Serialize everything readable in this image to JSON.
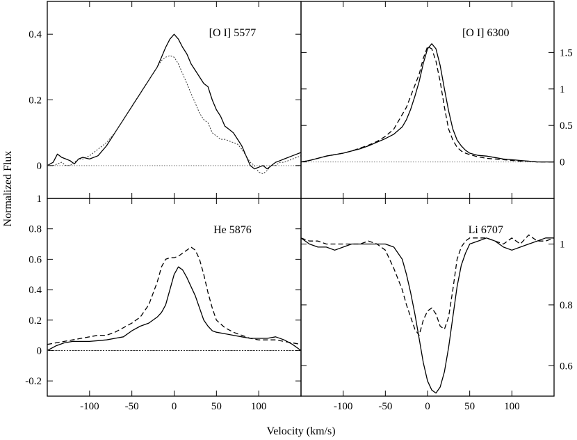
{
  "chart_data": {
    "type": "line",
    "ylabel": "Normalized Flux",
    "xlabel": "Velocity (km/s)",
    "xlim": [
      -150,
      150
    ],
    "xticks": [
      -100,
      -50,
      0,
      50,
      100
    ],
    "panels": [
      {
        "label": "[O I] 5577",
        "position": "top-left",
        "ylim": [
          -0.1,
          0.5
        ],
        "yticks": [
          0,
          0.2,
          0.4
        ],
        "ytick_labels": [
          "0",
          "0.2",
          "0.4"
        ],
        "ytick_side": "left",
        "zero_line": 0,
        "series": [
          {
            "style": "solid",
            "x": [
              -150,
              -143,
              -138,
              -133,
              -128,
              -123,
              -118,
              -113,
              -108,
              -100,
              -90,
              -80,
              -70,
              -60,
              -50,
              -40,
              -30,
              -20,
              -15,
              -10,
              -5,
              0,
              5,
              10,
              15,
              20,
              25,
              30,
              35,
              40,
              45,
              50,
              55,
              60,
              65,
              70,
              75,
              80,
              85,
              90,
              95,
              100,
              105,
              110,
              115,
              120,
              125,
              130,
              140,
              150
            ],
            "y": [
              0.0,
              0.01,
              0.035,
              0.025,
              0.02,
              0.015,
              0.005,
              0.02,
              0.025,
              0.02,
              0.03,
              0.06,
              0.1,
              0.14,
              0.18,
              0.22,
              0.26,
              0.3,
              0.33,
              0.36,
              0.385,
              0.4,
              0.385,
              0.36,
              0.34,
              0.31,
              0.29,
              0.27,
              0.25,
              0.24,
              0.2,
              0.17,
              0.15,
              0.12,
              0.11,
              0.1,
              0.08,
              0.06,
              0.03,
              0.0,
              -0.01,
              -0.005,
              0.0,
              -0.01,
              0.0,
              0.01,
              0.015,
              0.02,
              0.03,
              0.04
            ]
          },
          {
            "style": "dotted",
            "x": [
              -150,
              -143,
              -138,
              -133,
              -128,
              -123,
              -118,
              -113,
              -108,
              -100,
              -90,
              -80,
              -70,
              -60,
              -50,
              -40,
              -30,
              -20,
              -15,
              -10,
              -5,
              0,
              5,
              10,
              15,
              20,
              25,
              30,
              35,
              40,
              45,
              50,
              55,
              60,
              65,
              70,
              75,
              80,
              85,
              90,
              95,
              100,
              105,
              110,
              115,
              120,
              125,
              130,
              140,
              150
            ],
            "y": [
              0.0,
              0.0,
              0.005,
              0.01,
              0.0,
              0.0,
              0.01,
              0.02,
              0.02,
              0.03,
              0.05,
              0.07,
              0.1,
              0.14,
              0.18,
              0.22,
              0.26,
              0.3,
              0.32,
              0.33,
              0.335,
              0.33,
              0.31,
              0.28,
              0.25,
              0.22,
              0.19,
              0.16,
              0.14,
              0.13,
              0.1,
              0.09,
              0.08,
              0.08,
              0.075,
              0.07,
              0.065,
              0.05,
              0.03,
              0.01,
              0.0,
              -0.02,
              -0.025,
              -0.015,
              0.0,
              0.0,
              0.01,
              0.01,
              0.02,
              0.03
            ]
          }
        ]
      },
      {
        "label": "[O I] 6300",
        "position": "top-right",
        "ylim": [
          -0.5,
          2.2
        ],
        "yticks": [
          0,
          0.5,
          1,
          1.5
        ],
        "ytick_labels": [
          "0",
          "0.5",
          "1",
          "1.5"
        ],
        "ytick_side": "right",
        "zero_line": 0,
        "series": [
          {
            "style": "solid",
            "x": [
              -150,
              -140,
              -130,
              -120,
              -110,
              -100,
              -90,
              -80,
              -70,
              -60,
              -50,
              -40,
              -30,
              -25,
              -20,
              -15,
              -10,
              -5,
              0,
              5,
              10,
              15,
              20,
              25,
              30,
              35,
              40,
              45,
              50,
              60,
              70,
              80,
              90,
              100,
              110,
              120,
              130,
              140,
              150
            ],
            "y": [
              0.0,
              0.02,
              0.05,
              0.08,
              0.1,
              0.12,
              0.15,
              0.18,
              0.22,
              0.27,
              0.32,
              0.38,
              0.48,
              0.58,
              0.72,
              0.9,
              1.1,
              1.35,
              1.55,
              1.62,
              1.55,
              1.32,
              1.0,
              0.7,
              0.45,
              0.3,
              0.22,
              0.16,
              0.12,
              0.09,
              0.08,
              0.06,
              0.04,
              0.03,
              0.02,
              0.01,
              0.0,
              0.0,
              0.0
            ]
          },
          {
            "style": "dashed",
            "x": [
              -150,
              -140,
              -130,
              -120,
              -110,
              -100,
              -90,
              -80,
              -70,
              -60,
              -50,
              -40,
              -30,
              -25,
              -20,
              -15,
              -10,
              -5,
              0,
              5,
              10,
              15,
              20,
              25,
              30,
              35,
              40,
              45,
              50,
              60,
              70,
              80,
              90,
              100,
              110,
              120,
              130,
              140,
              150
            ],
            "y": [
              0.0,
              0.02,
              0.05,
              0.08,
              0.1,
              0.12,
              0.15,
              0.19,
              0.23,
              0.28,
              0.35,
              0.45,
              0.65,
              0.75,
              0.9,
              1.05,
              1.2,
              1.42,
              1.58,
              1.55,
              1.38,
              1.1,
              0.75,
              0.45,
              0.3,
              0.2,
              0.15,
              0.12,
              0.1,
              0.07,
              0.05,
              0.04,
              0.03,
              0.02,
              0.01,
              0.01,
              0.0,
              0.0,
              0.0
            ]
          }
        ]
      },
      {
        "label": "He 5876",
        "position": "bottom-left",
        "ylim": [
          -0.3,
          1.0
        ],
        "yticks": [
          -0.2,
          0,
          0.2,
          0.4,
          0.6,
          0.8,
          1
        ],
        "ytick_labels": [
          "-0.2",
          "0",
          "0.2",
          "0.4",
          "0.6",
          "0.8",
          "1"
        ],
        "ytick_side": "left",
        "zero_line": 0,
        "series": [
          {
            "style": "solid",
            "x": [
              -150,
              -140,
              -130,
              -120,
              -110,
              -100,
              -90,
              -80,
              -70,
              -60,
              -50,
              -40,
              -30,
              -20,
              -15,
              -10,
              -5,
              0,
              5,
              10,
              15,
              20,
              25,
              30,
              35,
              40,
              45,
              50,
              60,
              70,
              80,
              90,
              100,
              110,
              120,
              130,
              140,
              150
            ],
            "y": [
              0.0,
              0.03,
              0.05,
              0.06,
              0.06,
              0.06,
              0.065,
              0.07,
              0.08,
              0.09,
              0.13,
              0.16,
              0.18,
              0.22,
              0.25,
              0.3,
              0.4,
              0.5,
              0.55,
              0.53,
              0.48,
              0.42,
              0.36,
              0.28,
              0.2,
              0.16,
              0.13,
              0.12,
              0.11,
              0.1,
              0.09,
              0.08,
              0.08,
              0.08,
              0.09,
              0.07,
              0.04,
              0.0
            ]
          },
          {
            "style": "dashed",
            "x": [
              -150,
              -140,
              -130,
              -120,
              -110,
              -100,
              -90,
              -80,
              -70,
              -60,
              -50,
              -40,
              -30,
              -20,
              -15,
              -10,
              -5,
              0,
              5,
              10,
              15,
              20,
              25,
              30,
              35,
              40,
              45,
              50,
              60,
              70,
              80,
              90,
              100,
              110,
              120,
              130,
              140,
              150
            ],
            "y": [
              0.04,
              0.05,
              0.06,
              0.07,
              0.08,
              0.09,
              0.1,
              0.1,
              0.12,
              0.15,
              0.18,
              0.22,
              0.3,
              0.45,
              0.55,
              0.6,
              0.61,
              0.61,
              0.62,
              0.64,
              0.66,
              0.68,
              0.66,
              0.6,
              0.5,
              0.38,
              0.28,
              0.2,
              0.15,
              0.12,
              0.1,
              0.08,
              0.07,
              0.07,
              0.07,
              0.06,
              0.05,
              0.04
            ]
          },
          {
            "style": "dotted",
            "x": [
              -150,
              150
            ],
            "y": [
              0,
              0
            ]
          }
        ]
      },
      {
        "label": "Li 6707",
        "position": "bottom-right",
        "ylim": [
          0.5,
          1.15
        ],
        "yticks": [
          0.6,
          0.8,
          1
        ],
        "ytick_labels": [
          "0.6",
          "0.8",
          "1"
        ],
        "ytick_side": "right",
        "zero_line": null,
        "series": [
          {
            "style": "solid",
            "x": [
              -150,
              -140,
              -130,
              -120,
              -110,
              -100,
              -90,
              -80,
              -70,
              -60,
              -50,
              -40,
              -30,
              -25,
              -20,
              -15,
              -10,
              -5,
              0,
              5,
              10,
              15,
              20,
              25,
              30,
              35,
              40,
              45,
              50,
              60,
              70,
              80,
              90,
              100,
              110,
              120,
              130,
              140,
              150
            ],
            "y": [
              1.02,
              1.0,
              0.99,
              0.99,
              0.98,
              0.99,
              1.0,
              1.0,
              1.0,
              1.0,
              1.0,
              0.99,
              0.95,
              0.9,
              0.84,
              0.77,
              0.69,
              0.61,
              0.55,
              0.52,
              0.51,
              0.53,
              0.58,
              0.66,
              0.76,
              0.86,
              0.93,
              0.97,
              1.0,
              1.01,
              1.02,
              1.01,
              0.99,
              0.98,
              0.99,
              1.0,
              1.01,
              1.02,
              1.02
            ]
          },
          {
            "style": "dashed",
            "x": [
              -150,
              -140,
              -130,
              -120,
              -110,
              -100,
              -90,
              -80,
              -70,
              -60,
              -50,
              -40,
              -30,
              -25,
              -20,
              -15,
              -10,
              -5,
              0,
              5,
              10,
              15,
              20,
              25,
              30,
              35,
              40,
              45,
              50,
              60,
              70,
              80,
              90,
              100,
              110,
              120,
              130,
              140,
              150
            ],
            "y": [
              1.02,
              1.01,
              1.01,
              1.0,
              1.0,
              1.0,
              1.0,
              1.0,
              1.01,
              1.0,
              0.98,
              0.92,
              0.85,
              0.8,
              0.76,
              0.72,
              0.7,
              0.75,
              0.78,
              0.79,
              0.77,
              0.73,
              0.72,
              0.76,
              0.85,
              0.95,
              0.99,
              1.01,
              1.02,
              1.02,
              1.02,
              1.01,
              1.0,
              1.02,
              1.0,
              1.03,
              1.01,
              1.01,
              1.02
            ]
          }
        ]
      }
    ]
  }
}
